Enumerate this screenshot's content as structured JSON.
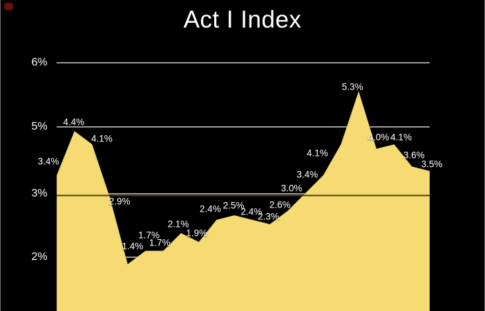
{
  "title": "Act I Index",
  "colors": {
    "background": "#000000",
    "area": "#f5db72",
    "gridline": "#b3b3b3",
    "reference_line_dark": "#4f3d10",
    "label_text": "#ffffff",
    "corner_mark": "#7c1710"
  },
  "chart_data": {
    "type": "area",
    "title": "Act I Index",
    "values": [
      3.4,
      4.4,
      4.1,
      2.9,
      1.4,
      1.7,
      1.7,
      2.1,
      1.9,
      2.4,
      2.5,
      2.4,
      2.3,
      2.6,
      3.0,
      3.4,
      4.1,
      5.3,
      4.0,
      4.1,
      3.6,
      3.5
    ],
    "unit": "%",
    "decimals": 1,
    "data_labels_visible": true,
    "y_ticks": [
      "6%",
      "5%",
      "3%",
      "2%"
    ],
    "x_ticks": [],
    "xlabel": "",
    "ylabel": "",
    "legend": "none",
    "grid": "horizontal",
    "reference_line": "3%",
    "area_baseline": "cropped at image bottom",
    "axis_note": "y tick labels 6,5,3,2 are evenly spaced (4% label absent)"
  }
}
